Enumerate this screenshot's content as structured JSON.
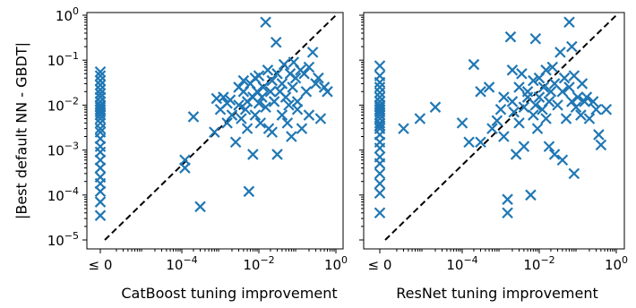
{
  "chart_data": [
    {
      "type": "scatter",
      "xlabel": "CatBoost tuning improvement",
      "ylabel": "|Best default NN - GBDT|",
      "x_scale": "log",
      "y_scale": "log",
      "xlim": [
        1e-06,
        1
      ],
      "ylim": [
        1e-05,
        1
      ],
      "x_zero_label": "≤ 0",
      "x_ticks": [
        {
          "value": 0.0001,
          "label_base": "10",
          "label_exp": "−4"
        },
        {
          "value": 0.01,
          "label_base": "10",
          "label_exp": "−2"
        },
        {
          "value": 1,
          "label_base": "10",
          "label_exp": "0"
        }
      ],
      "y_ticks": [
        {
          "value": 1e-05,
          "label_base": "10",
          "label_exp": "−5"
        },
        {
          "value": 0.0001,
          "label_base": "10",
          "label_exp": "−4"
        },
        {
          "value": 0.001,
          "label_base": "10",
          "label_exp": "−3"
        },
        {
          "value": 0.01,
          "label_base": "10",
          "label_exp": "−2"
        },
        {
          "value": 0.1,
          "label_base": "10",
          "label_exp": "−1"
        },
        {
          "value": 1,
          "label_base": "10",
          "label_exp": "0"
        }
      ],
      "zero_column_y": [
        0.055,
        0.045,
        0.035,
        0.028,
        0.022,
        0.018,
        0.015,
        0.012,
        0.01,
        0.009,
        0.008,
        0.007,
        0.006,
        0.005,
        0.004,
        0.003,
        0.0025,
        0.0018,
        0.0012,
        0.0009,
        0.0006,
        0.0004,
        0.00025,
        0.00018,
        0.00012,
        7e-05,
        3.5e-05
      ],
      "points": [
        [
          0.0002,
          0.0055
        ],
        [
          0.00012,
          0.0006
        ],
        [
          0.00012,
          0.0004
        ],
        [
          0.0003,
          5.5e-05
        ],
        [
          0.0008,
          0.014
        ],
        [
          0.0007,
          0.0025
        ],
        [
          0.001,
          0.008
        ],
        [
          0.0012,
          0.015
        ],
        [
          0.0015,
          0.004
        ],
        [
          0.0015,
          0.011
        ],
        [
          0.002,
          0.006
        ],
        [
          0.0018,
          0.013
        ],
        [
          0.0025,
          0.0015
        ],
        [
          0.003,
          0.025
        ],
        [
          0.003,
          0.01
        ],
        [
          0.0035,
          0.005
        ],
        [
          0.004,
          0.035
        ],
        [
          0.004,
          0.02
        ],
        [
          0.0045,
          0.008
        ],
        [
          0.005,
          0.003
        ],
        [
          0.005,
          0.012
        ],
        [
          0.0055,
          0.00012
        ],
        [
          0.006,
          0.03
        ],
        [
          0.007,
          0.0008
        ],
        [
          0.007,
          0.015
        ],
        [
          0.008,
          0.04
        ],
        [
          0.008,
          0.006
        ],
        [
          0.009,
          0.02
        ],
        [
          0.01,
          0.045
        ],
        [
          0.01,
          0.011
        ],
        [
          0.011,
          0.004
        ],
        [
          0.012,
          0.015
        ],
        [
          0.013,
          0.025
        ],
        [
          0.015,
          0.7
        ],
        [
          0.015,
          0.009
        ],
        [
          0.017,
          0.06
        ],
        [
          0.018,
          0.003
        ],
        [
          0.02,
          0.02
        ],
        [
          0.022,
          0.035
        ],
        [
          0.022,
          0.0025
        ],
        [
          0.025,
          0.012
        ],
        [
          0.028,
          0.25
        ],
        [
          0.03,
          0.05
        ],
        [
          0.03,
          0.0008
        ],
        [
          0.035,
          0.02
        ],
        [
          0.04,
          0.006
        ],
        [
          0.04,
          0.03
        ],
        [
          0.045,
          0.08
        ],
        [
          0.05,
          0.015
        ],
        [
          0.055,
          0.004
        ],
        [
          0.06,
          0.01
        ],
        [
          0.065,
          0.05
        ],
        [
          0.07,
          0.002
        ],
        [
          0.075,
          0.025
        ],
        [
          0.08,
          0.09
        ],
        [
          0.09,
          0.04
        ],
        [
          0.1,
          0.012
        ],
        [
          0.1,
          0.008
        ],
        [
          0.12,
          0.06
        ],
        [
          0.13,
          0.003
        ],
        [
          0.15,
          0.05
        ],
        [
          0.17,
          0.02
        ],
        [
          0.2,
          0.07
        ],
        [
          0.2,
          0.006
        ],
        [
          0.25,
          0.15
        ],
        [
          0.3,
          0.03
        ],
        [
          0.35,
          0.04
        ],
        [
          0.4,
          0.005
        ],
        [
          0.5,
          0.025
        ],
        [
          0.6,
          0.02
        ]
      ]
    },
    {
      "type": "scatter",
      "xlabel": "ResNet tuning improvement",
      "ylabel": "",
      "x_scale": "log",
      "y_scale": "log",
      "xlim": [
        1e-06,
        1
      ],
      "ylim": [
        1e-05,
        1
      ],
      "x_zero_label": "≤ 0",
      "x_ticks": [
        {
          "value": 0.0001,
          "label_base": "10",
          "label_exp": "−4"
        },
        {
          "value": 0.01,
          "label_base": "10",
          "label_exp": "−2"
        },
        {
          "value": 1,
          "label_base": "10",
          "label_exp": "0"
        }
      ],
      "zero_column_y": [
        0.075,
        0.045,
        0.032,
        0.025,
        0.019,
        0.015,
        0.012,
        0.01,
        0.009,
        0.008,
        0.007,
        0.006,
        0.005,
        0.004,
        0.0035,
        0.003,
        0.0022,
        0.0015,
        0.0011,
        0.0007,
        0.0005,
        0.0003,
        0.00018,
        0.00011,
        4e-05
      ],
      "points": [
        [
          3e-06,
          0.003
        ],
        [
          8e-06,
          0.005
        ],
        [
          2e-05,
          0.009
        ],
        [
          0.0001,
          0.004
        ],
        [
          0.00015,
          0.0015
        ],
        [
          0.0002,
          0.08
        ],
        [
          0.0003,
          0.02
        ],
        [
          0.0003,
          0.0015
        ],
        [
          0.0005,
          0.025
        ],
        [
          0.0006,
          0.003
        ],
        [
          0.0008,
          0.0045
        ],
        [
          0.001,
          0.008
        ],
        [
          0.0012,
          0.015
        ],
        [
          0.0012,
          0.002
        ],
        [
          0.0015,
          8e-05
        ],
        [
          0.0015,
          4e-05
        ],
        [
          0.0018,
          0.33
        ],
        [
          0.002,
          0.06
        ],
        [
          0.002,
          0.012
        ],
        [
          0.0022,
          0.007
        ],
        [
          0.0025,
          0.0008
        ],
        [
          0.003,
          0.025
        ],
        [
          0.003,
          0.004
        ],
        [
          0.0035,
          0.05
        ],
        [
          0.004,
          0.009
        ],
        [
          0.004,
          0.0012
        ],
        [
          0.005,
          0.015
        ],
        [
          0.005,
          0.02
        ],
        [
          0.006,
          0.0001
        ],
        [
          0.007,
          0.035
        ],
        [
          0.007,
          0.006
        ],
        [
          0.008,
          0.3
        ],
        [
          0.008,
          0.01
        ],
        [
          0.009,
          0.003
        ],
        [
          0.01,
          0.04
        ],
        [
          0.01,
          0.015
        ],
        [
          0.012,
          0.008
        ],
        [
          0.013,
          0.025
        ],
        [
          0.015,
          0.005
        ],
        [
          0.015,
          0.06
        ],
        [
          0.018,
          0.012
        ],
        [
          0.018,
          0.0012
        ],
        [
          0.02,
          0.02
        ],
        [
          0.022,
          0.07
        ],
        [
          0.025,
          0.03
        ],
        [
          0.025,
          0.0008
        ],
        [
          0.03,
          0.01
        ],
        [
          0.035,
          0.15
        ],
        [
          0.04,
          0.02
        ],
        [
          0.04,
          0.0006
        ],
        [
          0.045,
          0.04
        ],
        [
          0.05,
          0.005
        ],
        [
          0.06,
          0.7
        ],
        [
          0.06,
          0.025
        ],
        [
          0.07,
          0.2
        ],
        [
          0.07,
          0.012
        ],
        [
          0.08,
          0.045
        ],
        [
          0.08,
          0.0003
        ],
        [
          0.09,
          0.009
        ],
        [
          0.1,
          0.015
        ],
        [
          0.12,
          0.006
        ],
        [
          0.13,
          0.03
        ],
        [
          0.15,
          0.012
        ],
        [
          0.17,
          0.015
        ],
        [
          0.2,
          0.005
        ],
        [
          0.25,
          0.012
        ],
        [
          0.3,
          0.008
        ],
        [
          0.35,
          0.0022
        ],
        [
          0.4,
          0.0013
        ],
        [
          0.55,
          0.008
        ]
      ]
    }
  ],
  "colors": {
    "marker": "#1f77b4",
    "diagonal": "#000000",
    "frame": "#000000"
  }
}
